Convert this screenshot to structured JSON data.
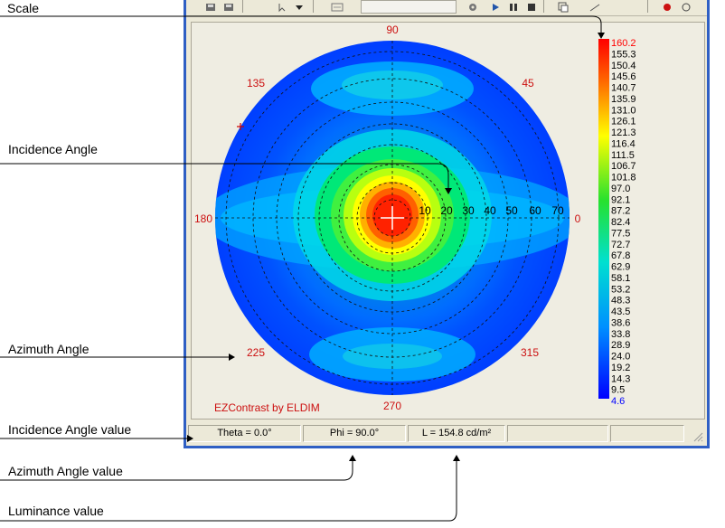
{
  "annotations": {
    "scale": "Scale",
    "incidence_angle": "Incidence Angle",
    "azimuth_angle": "Azimuth Angle",
    "incidence_angle_value": "Incidence Angle value",
    "azimuth_angle_value": "Azimuth Angle value",
    "luminance_value": "Luminance value"
  },
  "plot": {
    "azimuth_labels": {
      "a90": "90",
      "a45": "45",
      "a135": "135",
      "a180": "180",
      "a0": "0",
      "a225": "225",
      "a315": "315",
      "a270": "270"
    },
    "incidence_labels": [
      "10",
      "20",
      "30",
      "40",
      "50",
      "60",
      "70"
    ],
    "watermark": "EZContrast by ELDIM"
  },
  "scale": {
    "values": [
      "160.2",
      "155.3",
      "150.4",
      "145.6",
      "140.7",
      "135.9",
      "131.0",
      "126.1",
      "121.3",
      "116.4",
      "111.5",
      "106.7",
      "101.8",
      "97.0",
      "92.1",
      "87.2",
      "82.4",
      "77.5",
      "72.7",
      "67.8",
      "62.9",
      "58.1",
      "53.2",
      "48.3",
      "43.5",
      "38.6",
      "33.8",
      "28.9",
      "24.0",
      "19.2",
      "14.3",
      "9.5",
      "4.6"
    ],
    "max_color": "#ff0000",
    "min_color": "#0000ff"
  },
  "status": {
    "theta": "Theta = 0.0°",
    "phi": "Phi = 90.0°",
    "luminance": "L = 154.8 cd/m²"
  }
}
